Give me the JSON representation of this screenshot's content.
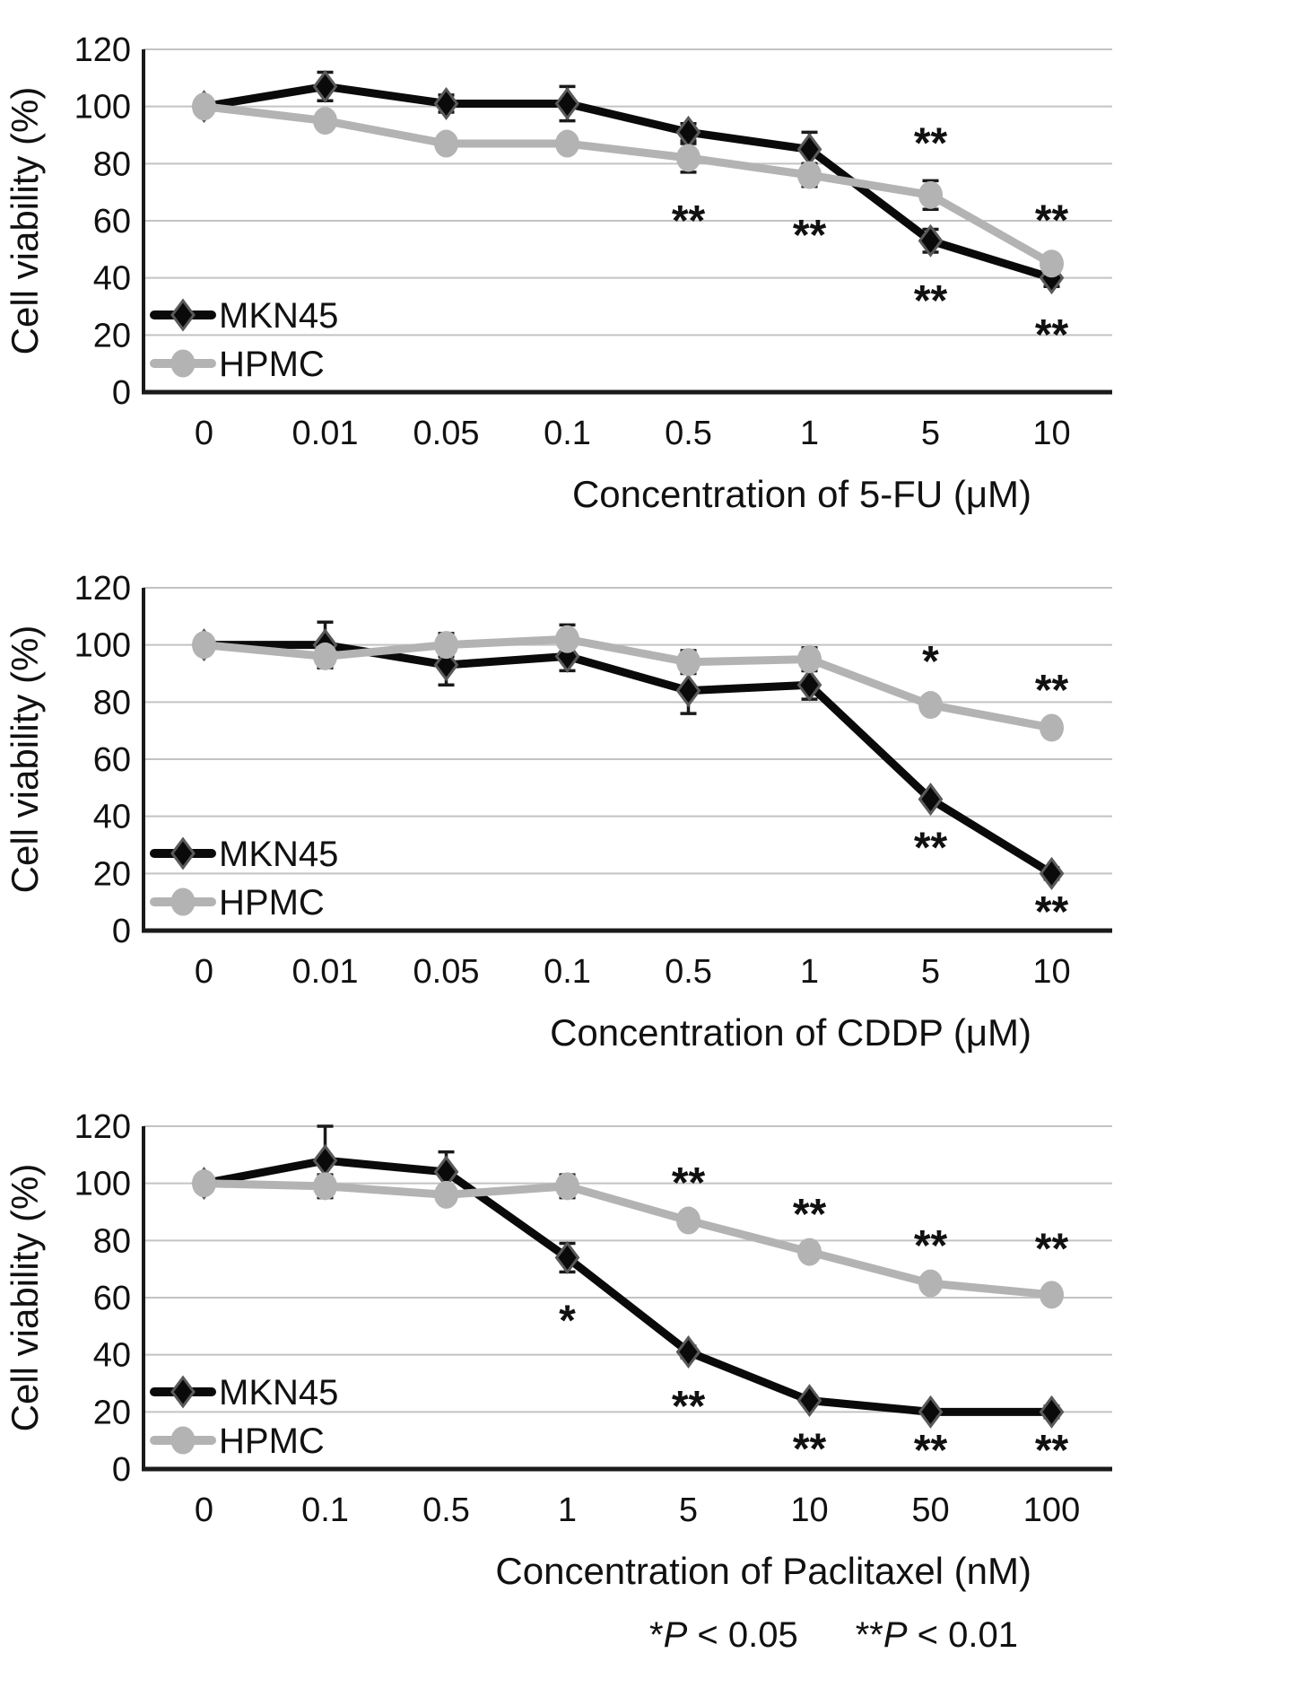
{
  "figure": {
    "ylabel": "Cell viability (%)"
  },
  "colors": {
    "mkn45": "#0a0a0a",
    "hpmc": "#b3b3b3",
    "gridline": "#c3c3c3",
    "axis": "#1a1a1a",
    "marker_outline": "#5a5a5a",
    "errorbar": "#1a1a1a",
    "background": "#ffffff"
  },
  "footnote": {
    "p05_star": "*",
    "p05_p": "P",
    "p05_rest": " < 0.05",
    "p01_star": "**",
    "p01_p": "P",
    "p01_rest": " < 0.01"
  },
  "chart_data": [
    {
      "name": "chart-5fu",
      "type": "line",
      "title": "",
      "xlabel": "Concentration of 5-FU (μM)",
      "ylabel": "Cell viability (%)",
      "ylim": [
        0,
        120
      ],
      "yticks": [
        0,
        20,
        40,
        60,
        80,
        100,
        120
      ],
      "grid": true,
      "legend_position": "bottom-left",
      "categories": [
        "0",
        "0.01",
        "0.05",
        "0.1",
        "0.5",
        "1",
        "5",
        "10"
      ],
      "series": [
        {
          "name": "MKN45",
          "marker": "diamond",
          "color": "#0a0a0a",
          "values": [
            100,
            107,
            101,
            101,
            91,
            85,
            53,
            40
          ],
          "errors": [
            0,
            5,
            3,
            6,
            3,
            6,
            4,
            3
          ]
        },
        {
          "name": "HPMC",
          "marker": "circle",
          "color": "#b3b3b3",
          "values": [
            100,
            95,
            87,
            87,
            82,
            76,
            69,
            45
          ],
          "errors": [
            0,
            0,
            0,
            0,
            5,
            4,
            5,
            2
          ]
        }
      ],
      "annotations": [
        {
          "xi": 4,
          "series": "HPMC",
          "text": "**",
          "pos": "below"
        },
        {
          "xi": 5,
          "series": "HPMC",
          "text": "**",
          "pos": "below"
        },
        {
          "xi": 6,
          "series": "HPMC",
          "text": "**",
          "pos": "above"
        },
        {
          "xi": 6,
          "series": "MKN45",
          "text": "**",
          "pos": "below"
        },
        {
          "xi": 7,
          "series": "HPMC",
          "text": "**",
          "pos": "above"
        },
        {
          "xi": 7,
          "series": "MKN45",
          "text": "**",
          "pos": "below"
        }
      ]
    },
    {
      "name": "chart-cddp",
      "type": "line",
      "title": "",
      "xlabel": "Concentration of CDDP (μM)",
      "ylabel": "Cell viability (%)",
      "ylim": [
        0,
        120
      ],
      "yticks": [
        0,
        20,
        40,
        60,
        80,
        100,
        120
      ],
      "grid": true,
      "legend_position": "bottom-left",
      "categories": [
        "0",
        "0.01",
        "0.05",
        "0.1",
        "0.5",
        "1",
        "5",
        "10"
      ],
      "series": [
        {
          "name": "MKN45",
          "marker": "diamond",
          "color": "#0a0a0a",
          "values": [
            100,
            100,
            93,
            96,
            84,
            86,
            46,
            20
          ],
          "errors": [
            0,
            8,
            7,
            5,
            8,
            5,
            0,
            2
          ]
        },
        {
          "name": "HPMC",
          "marker": "circle",
          "color": "#b3b3b3",
          "values": [
            100,
            96,
            100,
            102,
            94,
            95,
            79,
            71
          ],
          "errors": [
            0,
            4,
            4,
            5,
            4,
            4,
            2,
            0
          ]
        }
      ],
      "annotations": [
        {
          "xi": 6,
          "series": "HPMC",
          "text": "*",
          "pos": "above"
        },
        {
          "xi": 7,
          "series": "HPMC",
          "text": "**",
          "pos": "above"
        },
        {
          "xi": 6,
          "series": "MKN45",
          "text": "**",
          "pos": "below"
        },
        {
          "xi": 7,
          "series": "MKN45",
          "text": "**",
          "pos": "below"
        }
      ]
    },
    {
      "name": "chart-paclitaxel",
      "type": "line",
      "title": "",
      "xlabel": "Concentration of Paclitaxel (nM)",
      "ylabel": "Cell viability (%)",
      "ylim": [
        0,
        120
      ],
      "yticks": [
        0,
        20,
        40,
        60,
        80,
        100,
        120
      ],
      "grid": true,
      "legend_position": "bottom-left",
      "categories": [
        "0",
        "0.1",
        "0.5",
        "1",
        "5",
        "10",
        "50",
        "100"
      ],
      "series": [
        {
          "name": "MKN45",
          "marker": "diamond",
          "color": "#0a0a0a",
          "values": [
            100,
            108,
            104,
            74,
            41,
            24,
            20,
            20
          ],
          "errors": [
            0,
            12,
            7,
            5,
            2,
            0,
            0,
            2
          ]
        },
        {
          "name": "HPMC",
          "marker": "circle",
          "color": "#b3b3b3",
          "values": [
            100,
            99,
            96,
            99,
            87,
            76,
            65,
            61
          ],
          "errors": [
            0,
            4,
            3,
            4,
            0,
            0,
            0,
            3
          ]
        }
      ],
      "annotations": [
        {
          "xi": 3,
          "series": "MKN45",
          "text": "*",
          "pos": "below"
        },
        {
          "xi": 4,
          "series": "HPMC",
          "text": "**",
          "pos": "above"
        },
        {
          "xi": 5,
          "series": "HPMC",
          "text": "**",
          "pos": "above"
        },
        {
          "xi": 6,
          "series": "HPMC",
          "text": "**",
          "pos": "above"
        },
        {
          "xi": 7,
          "series": "HPMC",
          "text": "**",
          "pos": "above"
        },
        {
          "xi": 4,
          "series": "MKN45",
          "text": "**",
          "pos": "below"
        },
        {
          "xi": 5,
          "series": "MKN45",
          "text": "**",
          "pos": "below"
        },
        {
          "xi": 6,
          "series": "MKN45",
          "text": "**",
          "pos": "below"
        },
        {
          "xi": 7,
          "series": "MKN45",
          "text": "**",
          "pos": "below"
        }
      ]
    }
  ]
}
